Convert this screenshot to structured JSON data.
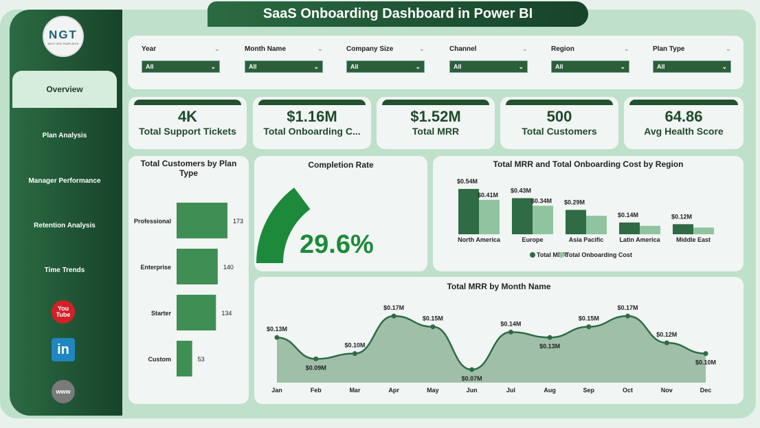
{
  "title": "SaaS Onboarding Dashboard in Power BI",
  "logo": {
    "text": "NGT",
    "subtext": "NEXT GEN TEMPLATES"
  },
  "sidebar": {
    "items": [
      {
        "label": "Overview",
        "active": true
      },
      {
        "label": "Plan Analysis"
      },
      {
        "label": "Manager Performance"
      },
      {
        "label": "Retention Analysis"
      },
      {
        "label": "Time Trends"
      }
    ],
    "social": [
      {
        "icon": "youtube-icon",
        "text": "You Tube",
        "color": "#d32027"
      },
      {
        "icon": "linkedin-icon",
        "text": "in",
        "color": "#1f86bf"
      },
      {
        "icon": "globe-icon",
        "text": "www",
        "color": "#7a7a7a"
      }
    ]
  },
  "filters": [
    {
      "label": "Year",
      "value": "All"
    },
    {
      "label": "Month Name",
      "value": "All"
    },
    {
      "label": "Company Size",
      "value": "All"
    },
    {
      "label": "Channel",
      "value": "All"
    },
    {
      "label": "Region",
      "value": "All"
    },
    {
      "label": "Plan Type",
      "value": "All"
    }
  ],
  "kpis": [
    {
      "value": "4K",
      "label": "Total Support Tickets"
    },
    {
      "value": "$1.16M",
      "label": "Total Onboarding C..."
    },
    {
      "value": "$1.52M",
      "label": "Total MRR"
    },
    {
      "value": "500",
      "label": "Total Customers"
    },
    {
      "value": "64.86",
      "label": "Avg Health Score"
    }
  ],
  "colors": {
    "dark": "#2f6b44",
    "light": "#90c4a0",
    "gauge": "#1c8a3a",
    "bar": "#3f8f55"
  },
  "chart_data": [
    {
      "type": "bar",
      "orientation": "horizontal",
      "title": "Total Customers by Plan Type",
      "categories": [
        "Professional",
        "Enterprise",
        "Starter",
        "Custom"
      ],
      "values": [
        173,
        140,
        134,
        53
      ],
      "labels": [
        "173",
        "140",
        "134",
        "53"
      ]
    },
    {
      "type": "gauge",
      "title": "Completion Rate",
      "value": 29.6,
      "label": "29.6%",
      "max": 100
    },
    {
      "type": "bar",
      "title": "Total MRR and Total Onboarding Cost by Region",
      "categories": [
        "North America",
        "Europe",
        "Asia Pacific",
        "Latin America",
        "Middle East"
      ],
      "series": [
        {
          "name": "Total MRR",
          "values": [
            0.54,
            0.43,
            0.29,
            0.14,
            0.12
          ],
          "labels": [
            "$0.54M",
            "$0.43M",
            "$0.29M",
            "$0.14M",
            "$0.12M"
          ]
        },
        {
          "name": "Total Onboarding Cost",
          "values": [
            0.41,
            0.34,
            0.22,
            0.1,
            0.08
          ],
          "labels": [
            "$0.41M",
            "$0.34M",
            "",
            "",
            ""
          ]
        }
      ],
      "legend": "bottom"
    },
    {
      "type": "area",
      "title": "Total MRR by Month Name",
      "categories": [
        "Jan",
        "Feb",
        "Mar",
        "Apr",
        "May",
        "Jun",
        "Jul",
        "Aug",
        "Sep",
        "Oct",
        "Nov",
        "Dec"
      ],
      "values": [
        0.13,
        0.09,
        0.1,
        0.17,
        0.15,
        0.07,
        0.14,
        0.13,
        0.15,
        0.17,
        0.12,
        0.1
      ],
      "labels": [
        "$0.13M",
        "$0.09M",
        "$0.10M",
        "$0.17M",
        "$0.15M",
        "$0.07M",
        "$0.14M",
        "$0.13M",
        "$0.15M",
        "$0.17M",
        "$0.12M",
        "$0.10M"
      ]
    }
  ]
}
